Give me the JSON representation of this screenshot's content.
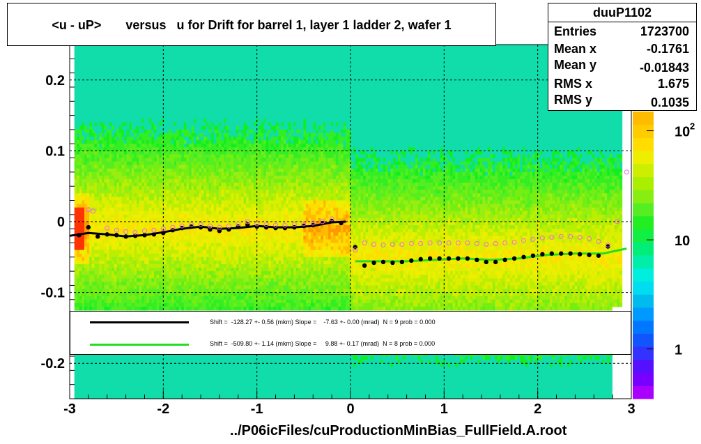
{
  "title": "<u - uP>       versus   u for Drift for barrel 1, layer 1 ladder 2, wafer 1",
  "stats": {
    "name": "duuP1102",
    "rows": [
      {
        "label": "Entries",
        "value": "1723700"
      },
      {
        "label": "Mean x",
        "value": "-0.1761"
      },
      {
        "label": "Mean y",
        "value": "-0.01843"
      },
      {
        "label": "RMS x",
        "value": "1.675"
      },
      {
        "label": "RMS y",
        "value": "0.1035"
      }
    ]
  },
  "fits": [
    {
      "color": "#000000",
      "text": "Shift =  -128.27 +- 0.56 (mkm) Slope =    -7.63 +- 0.00 (mrad)  N = 9 prob = 0.000"
    },
    {
      "color": "#22dd22",
      "text": "Shift =  -509.80 +- 1.14 (mkm) Slope =     9.88 +- 0.17 (mrad)  N = 8 prob = 0.000"
    }
  ],
  "footer": "../P06icFiles/cuProductionMinBias_FullField.A.root",
  "colors": {
    "black_fit": "#000000",
    "green_fit": "#22dd22",
    "pink_marker": "#ee66ee"
  },
  "chart_data": {
    "type": "heatmap",
    "xlim": [
      -3,
      3
    ],
    "ylim": [
      -0.25,
      0.25
    ],
    "x_ticks": [
      -3,
      -2,
      -1,
      0,
      1,
      2,
      3
    ],
    "x_tick_labels": [
      "-3",
      "-2",
      "-1",
      "0",
      "1",
      "2",
      "3"
    ],
    "y_ticks": [
      -0.2,
      -0.1,
      0,
      0.1,
      0.2
    ],
    "y_tick_labels": [
      "-0.2",
      "-0.1",
      "0",
      "0.1",
      "0.2"
    ],
    "grid": true,
    "z_scale": "log",
    "z_tick_labels": [
      {
        "value": 1,
        "base": "1",
        "exp": ""
      },
      {
        "value": 10,
        "base": "10",
        "exp": ""
      },
      {
        "value": 100,
        "base": "10",
        "exp": "2"
      }
    ],
    "series": [
      {
        "marker": "filled-circle",
        "color": "#000000",
        "x": [
          -2.9,
          -2.8,
          -2.7,
          -2.6,
          -2.5,
          -2.4,
          -2.3,
          -2.2,
          -2.1,
          -2.0,
          -1.9,
          -1.8,
          -1.7,
          -1.6,
          -1.5,
          -1.4,
          -1.3,
          -1.2,
          -1.1,
          -1.0,
          -0.9,
          -0.8,
          -0.7,
          -0.6,
          -0.5,
          -0.4,
          -0.3,
          -0.2,
          -0.1,
          0.05,
          0.15,
          0.25,
          0.35,
          0.45,
          0.55,
          0.65,
          0.75,
          0.85,
          0.95,
          1.05,
          1.15,
          1.25,
          1.35,
          1.45,
          1.55,
          1.65,
          1.75,
          1.85,
          1.95,
          2.05,
          2.15,
          2.25,
          2.35,
          2.45,
          2.55,
          2.65,
          2.75
        ],
        "y": [
          -0.019,
          -0.008,
          -0.021,
          -0.018,
          -0.019,
          -0.021,
          -0.02,
          -0.019,
          -0.018,
          -0.016,
          -0.012,
          -0.009,
          -0.007,
          -0.008,
          -0.011,
          -0.013,
          -0.011,
          -0.007,
          -0.004,
          -0.007,
          -0.008,
          -0.009,
          -0.009,
          -0.008,
          -0.006,
          -0.005,
          -0.002,
          0.001,
          -0.002,
          -0.036,
          -0.062,
          -0.058,
          -0.057,
          -0.058,
          -0.057,
          -0.055,
          -0.053,
          -0.052,
          -0.052,
          -0.052,
          -0.052,
          -0.052,
          -0.054,
          -0.057,
          -0.057,
          -0.054,
          -0.052,
          -0.05,
          -0.048,
          -0.046,
          -0.045,
          -0.045,
          -0.045,
          -0.046,
          -0.047,
          -0.048,
          -0.035
        ]
      },
      {
        "marker": "open-circle",
        "color": "#ee66ee",
        "x": [
          -2.8,
          -2.75,
          -2.6,
          -2.5,
          -2.4,
          -2.3,
          -2.2,
          -2.1,
          -2.0,
          -1.9,
          -1.8,
          -1.7,
          -1.6,
          -1.5,
          -1.4,
          -1.3,
          -1.2,
          -1.1,
          -1.0,
          -0.9,
          -0.8,
          -0.7,
          -0.6,
          -0.5,
          -0.4,
          -0.3,
          -0.2,
          0.05,
          0.15,
          0.25,
          0.35,
          0.45,
          0.55,
          0.65,
          0.75,
          0.85,
          0.95,
          1.05,
          1.15,
          1.25,
          1.35,
          1.45,
          1.55,
          1.65,
          1.75,
          1.85,
          1.95,
          2.05,
          2.15,
          2.25,
          2.35,
          2.45,
          2.55,
          2.65,
          2.75,
          2.85,
          2.95
        ],
        "y": [
          0.017,
          0.015,
          -0.009,
          -0.012,
          -0.014,
          -0.015,
          -0.013,
          -0.012,
          -0.01,
          -0.008,
          -0.006,
          -0.004,
          -0.004,
          -0.006,
          -0.008,
          -0.006,
          -0.003,
          0.0,
          -0.003,
          -0.004,
          -0.005,
          -0.005,
          -0.004,
          -0.003,
          -0.002,
          0.0,
          0.004,
          -0.04,
          -0.03,
          -0.032,
          -0.033,
          -0.032,
          -0.032,
          -0.031,
          -0.031,
          -0.03,
          -0.03,
          -0.03,
          -0.03,
          -0.03,
          -0.031,
          -0.032,
          -0.031,
          -0.03,
          -0.029,
          -0.027,
          -0.025,
          -0.023,
          -0.022,
          -0.021,
          -0.021,
          -0.022,
          -0.024,
          -0.028,
          -0.033,
          0.0,
          0.07
        ]
      }
    ],
    "fit_curves": [
      {
        "color": "#000000",
        "x": [
          -3.0,
          -2.8,
          -2.6,
          -2.4,
          -2.2,
          -2.0,
          -1.8,
          -1.6,
          -1.4,
          -1.2,
          -1.0,
          -0.8,
          -0.6,
          -0.4,
          -0.2,
          -0.05
        ],
        "y": [
          -0.02,
          -0.016,
          -0.018,
          -0.021,
          -0.019,
          -0.015,
          -0.01,
          -0.007,
          -0.01,
          -0.009,
          -0.006,
          -0.008,
          -0.008,
          -0.006,
          -0.001,
          0.0
        ]
      },
      {
        "color": "#22dd22",
        "x": [
          0.05,
          0.3,
          0.6,
          0.9,
          1.2,
          1.5,
          1.8,
          2.1,
          2.4,
          2.7,
          2.95
        ],
        "y": [
          -0.056,
          -0.056,
          -0.056,
          -0.054,
          -0.052,
          -0.054,
          -0.052,
          -0.047,
          -0.045,
          -0.045,
          -0.038
        ]
      }
    ]
  }
}
